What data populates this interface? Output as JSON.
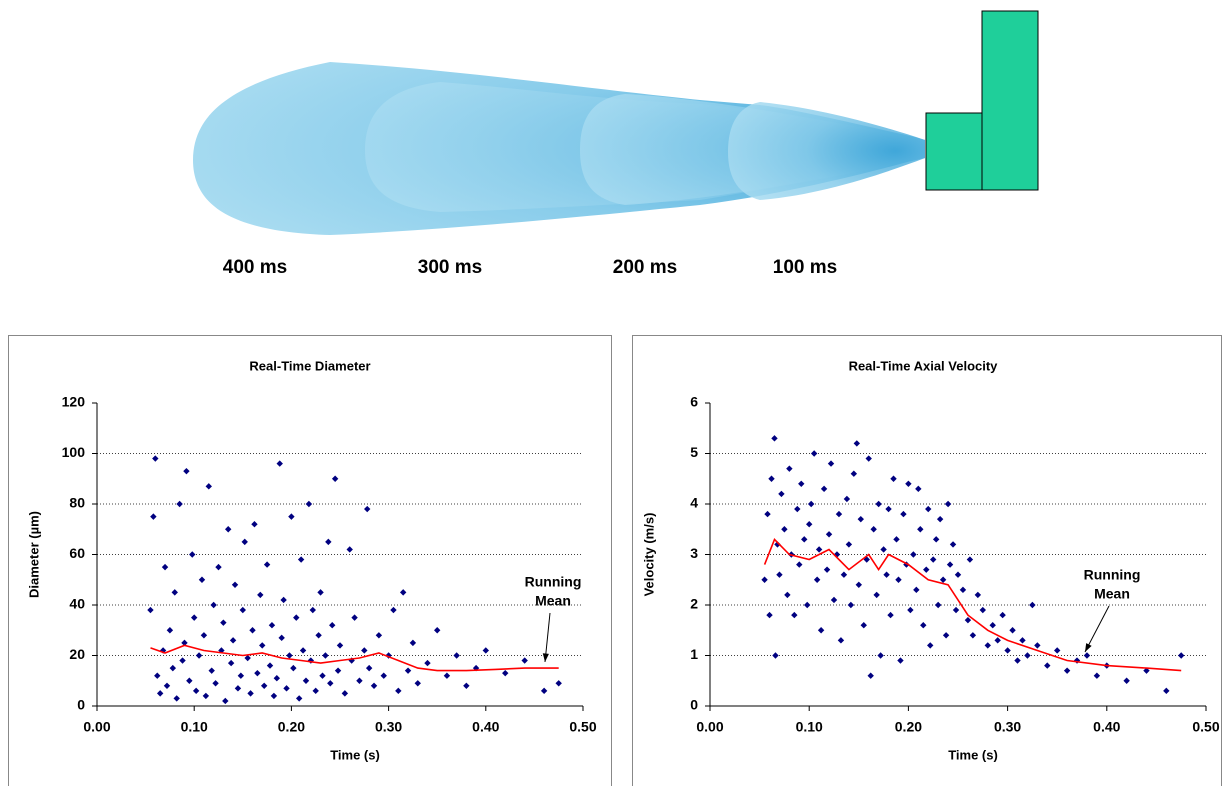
{
  "spray": {
    "labels": [
      "400 ms",
      "300 ms",
      "200 ms",
      "100 ms"
    ]
  },
  "chart_data": [
    {
      "type": "scatter",
      "title": "Real-Time Diameter",
      "x_label": "Time (s)",
      "y_label": "Diameter (µm)",
      "xlim": [
        0,
        0.5
      ],
      "xticks": [
        {
          "value": 0,
          "label": "0.00"
        },
        {
          "value": 0.1,
          "label": "0.10"
        },
        {
          "value": 0.2,
          "label": "0.20"
        },
        {
          "value": 0.3,
          "label": "0.30"
        },
        {
          "value": 0.4,
          "label": "0.40"
        },
        {
          "value": 0.5,
          "label": "0.50"
        }
      ],
      "ylim": [
        0,
        120
      ],
      "yticks": [
        0,
        20,
        40,
        60,
        80,
        100,
        120
      ],
      "grid": true,
      "annotation": [
        "Running",
        "Mean"
      ],
      "series": [
        {
          "type": "scatter",
          "color": "#000080",
          "x": [
            0.055,
            0.058,
            0.06,
            0.062,
            0.065,
            0.068,
            0.07,
            0.072,
            0.075,
            0.078,
            0.08,
            0.082,
            0.085,
            0.088,
            0.09,
            0.092,
            0.095,
            0.098,
            0.1,
            0.102,
            0.105,
            0.108,
            0.11,
            0.112,
            0.115,
            0.118,
            0.12,
            0.122,
            0.125,
            0.128,
            0.13,
            0.132,
            0.135,
            0.138,
            0.14,
            0.142,
            0.145,
            0.148,
            0.15,
            0.152,
            0.155,
            0.158,
            0.16,
            0.162,
            0.165,
            0.168,
            0.17,
            0.172,
            0.175,
            0.178,
            0.18,
            0.182,
            0.185,
            0.188,
            0.19,
            0.192,
            0.195,
            0.198,
            0.2,
            0.202,
            0.205,
            0.208,
            0.21,
            0.212,
            0.215,
            0.218,
            0.22,
            0.222,
            0.225,
            0.228,
            0.23,
            0.232,
            0.235,
            0.238,
            0.24,
            0.242,
            0.245,
            0.248,
            0.25,
            0.255,
            0.26,
            0.262,
            0.265,
            0.27,
            0.275,
            0.278,
            0.28,
            0.285,
            0.29,
            0.295,
            0.3,
            0.305,
            0.31,
            0.315,
            0.32,
            0.325,
            0.33,
            0.34,
            0.35,
            0.36,
            0.37,
            0.38,
            0.39,
            0.4,
            0.42,
            0.44,
            0.46,
            0.475
          ],
          "values": [
            38,
            75,
            98,
            12,
            5,
            22,
            55,
            8,
            30,
            15,
            45,
            3,
            80,
            18,
            25,
            93,
            10,
            60,
            35,
            6,
            20,
            50,
            28,
            4,
            87,
            14,
            40,
            9,
            55,
            22,
            33,
            2,
            70,
            17,
            26,
            48,
            7,
            12,
            38,
            65,
            19,
            5,
            30,
            72,
            13,
            44,
            24,
            8,
            56,
            16,
            32,
            4,
            11,
            96,
            27,
            42,
            7,
            20,
            75,
            15,
            35,
            3,
            58,
            22,
            10,
            80,
            18,
            38,
            6,
            28,
            45,
            12,
            20,
            65,
            9,
            32,
            90,
            14,
            24,
            5,
            62,
            18,
            35,
            10,
            22,
            78,
            15,
            8,
            28,
            12,
            20,
            38,
            6,
            45,
            14,
            25,
            9,
            17,
            30,
            12,
            20,
            8,
            15,
            22,
            13,
            18,
            6,
            9
          ]
        },
        {
          "type": "line",
          "color": "#ff0000",
          "x": [
            0.055,
            0.07,
            0.09,
            0.11,
            0.13,
            0.15,
            0.17,
            0.19,
            0.21,
            0.23,
            0.25,
            0.27,
            0.29,
            0.31,
            0.33,
            0.35,
            0.38,
            0.41,
            0.44,
            0.475
          ],
          "values": [
            23,
            21,
            24,
            22,
            21,
            20,
            21,
            19,
            18,
            17,
            18,
            19,
            21,
            18,
            15,
            14,
            14,
            14.5,
            15,
            15
          ]
        }
      ]
    },
    {
      "type": "scatter",
      "title": "Real-Time Axial Velocity",
      "x_label": "Time (s)",
      "y_label": "Velocity (m/s)",
      "xlim": [
        0,
        0.5
      ],
      "xticks": [
        {
          "value": 0,
          "label": "0.00"
        },
        {
          "value": 0.1,
          "label": "0.10"
        },
        {
          "value": 0.2,
          "label": "0.20"
        },
        {
          "value": 0.3,
          "label": "0.30"
        },
        {
          "value": 0.4,
          "label": "0.40"
        },
        {
          "value": 0.5,
          "label": "0.50"
        }
      ],
      "ylim": [
        0,
        6
      ],
      "yticks": [
        0,
        1,
        2,
        3,
        4,
        5,
        6
      ],
      "grid": true,
      "annotation": [
        "Running",
        "Mean"
      ],
      "series": [
        {
          "type": "scatter",
          "color": "#000080",
          "x": [
            0.055,
            0.058,
            0.06,
            0.062,
            0.065,
            0.066,
            0.068,
            0.07,
            0.072,
            0.075,
            0.078,
            0.08,
            0.082,
            0.085,
            0.088,
            0.09,
            0.092,
            0.095,
            0.098,
            0.1,
            0.102,
            0.105,
            0.108,
            0.11,
            0.112,
            0.115,
            0.118,
            0.12,
            0.122,
            0.125,
            0.128,
            0.13,
            0.132,
            0.135,
            0.138,
            0.14,
            0.142,
            0.145,
            0.148,
            0.15,
            0.152,
            0.155,
            0.158,
            0.16,
            0.162,
            0.165,
            0.168,
            0.17,
            0.172,
            0.175,
            0.178,
            0.18,
            0.182,
            0.185,
            0.188,
            0.19,
            0.192,
            0.195,
            0.198,
            0.2,
            0.202,
            0.205,
            0.208,
            0.21,
            0.212,
            0.215,
            0.218,
            0.22,
            0.222,
            0.225,
            0.228,
            0.23,
            0.232,
            0.235,
            0.238,
            0.24,
            0.242,
            0.245,
            0.248,
            0.25,
            0.255,
            0.26,
            0.262,
            0.265,
            0.27,
            0.275,
            0.28,
            0.285,
            0.29,
            0.295,
            0.3,
            0.305,
            0.31,
            0.315,
            0.32,
            0.325,
            0.33,
            0.34,
            0.35,
            0.36,
            0.37,
            0.38,
            0.39,
            0.4,
            0.42,
            0.44,
            0.46,
            0.475
          ],
          "values": [
            2.5,
            3.8,
            1.8,
            4.5,
            5.3,
            1.0,
            3.2,
            2.6,
            4.2,
            3.5,
            2.2,
            4.7,
            3.0,
            1.8,
            3.9,
            2.8,
            4.4,
            3.3,
            2.0,
            3.6,
            4.0,
            5.0,
            2.5,
            3.1,
            1.5,
            4.3,
            2.7,
            3.4,
            4.8,
            2.1,
            3.0,
            3.8,
            1.3,
            2.6,
            4.1,
            3.2,
            2.0,
            4.6,
            5.2,
            2.4,
            3.7,
            1.6,
            2.9,
            4.9,
            0.6,
            3.5,
            2.2,
            4.0,
            1.0,
            3.1,
            2.6,
            3.9,
            1.8,
            4.5,
            3.3,
            2.5,
            0.9,
            3.8,
            2.8,
            4.4,
            1.9,
            3.0,
            2.3,
            4.3,
            3.5,
            1.6,
            2.7,
            3.9,
            1.2,
            2.9,
            3.3,
            2.0,
            3.7,
            2.5,
            1.4,
            4.0,
            2.8,
            3.2,
            1.9,
            2.6,
            2.3,
            1.7,
            2.9,
            1.4,
            2.2,
            1.9,
            1.2,
            1.6,
            1.3,
            1.8,
            1.1,
            1.5,
            0.9,
            1.3,
            1.0,
            2.0,
            1.2,
            0.8,
            1.1,
            0.7,
            0.9,
            1.0,
            0.6,
            0.8,
            0.5,
            0.7,
            0.3,
            1.0
          ]
        },
        {
          "type": "line",
          "color": "#ff0000",
          "x": [
            0.055,
            0.065,
            0.08,
            0.1,
            0.12,
            0.14,
            0.16,
            0.17,
            0.18,
            0.2,
            0.22,
            0.24,
            0.26,
            0.28,
            0.3,
            0.33,
            0.36,
            0.4,
            0.44,
            0.475
          ],
          "values": [
            2.8,
            3.3,
            3.0,
            2.9,
            3.1,
            2.7,
            3.0,
            2.7,
            3.0,
            2.8,
            2.5,
            2.4,
            1.8,
            1.5,
            1.3,
            1.1,
            0.9,
            0.8,
            0.75,
            0.7
          ]
        }
      ]
    }
  ]
}
